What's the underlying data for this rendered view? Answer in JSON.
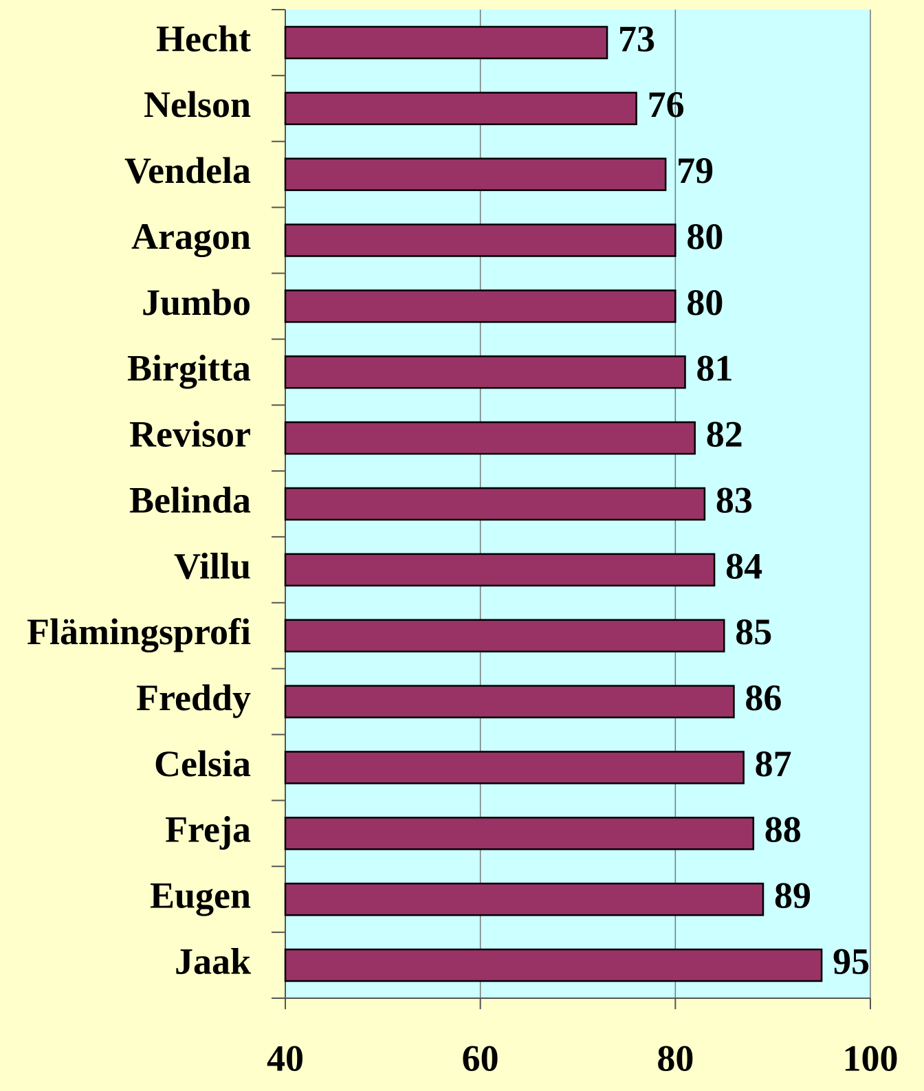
{
  "chart_data": {
    "type": "barh",
    "categories": [
      "Hecht",
      "Nelson",
      "Vendela",
      "Aragon",
      "Jumbo",
      "Birgitta",
      "Revisor",
      "Belinda",
      "Villu",
      "Flämingsprofi",
      "Freddy",
      "Celsia",
      "Freja",
      "Eugen",
      "Jaak"
    ],
    "values": [
      73,
      76,
      79,
      80,
      80,
      81,
      82,
      83,
      84,
      85,
      86,
      87,
      88,
      89,
      95
    ],
    "color": "#993366",
    "xlim": [
      40,
      100
    ],
    "xticks": [
      40,
      60,
      80,
      100
    ],
    "grid": true
  }
}
